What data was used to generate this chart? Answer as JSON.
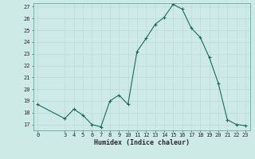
{
  "x": [
    0,
    3,
    4,
    5,
    6,
    7,
    8,
    9,
    10,
    11,
    12,
    13,
    14,
    15,
    16,
    17,
    18,
    19,
    20,
    21,
    22,
    23
  ],
  "y": [
    18.7,
    17.5,
    18.3,
    17.8,
    17.0,
    16.8,
    19.0,
    19.5,
    18.7,
    23.2,
    24.3,
    25.5,
    26.1,
    27.2,
    26.8,
    25.2,
    24.4,
    22.7,
    20.5,
    17.4,
    17.0,
    16.9
  ],
  "line_color": "#1a6b5e",
  "marker": "+",
  "marker_size": 3,
  "marker_lw": 0.8,
  "line_width": 0.8,
  "bg_color": "#ceeae7",
  "grid_color": "#b8d8d5",
  "xlabel": "Humidex (Indice chaleur)",
  "ylim_min": 16.5,
  "ylim_max": 27.3,
  "xlim_min": -0.5,
  "xlim_max": 23.5,
  "yticks": [
    17,
    18,
    19,
    20,
    21,
    22,
    23,
    24,
    25,
    26,
    27
  ],
  "xticks": [
    0,
    3,
    4,
    5,
    6,
    7,
    8,
    9,
    10,
    11,
    12,
    13,
    14,
    15,
    16,
    17,
    18,
    19,
    20,
    21,
    22,
    23
  ],
  "tick_fontsize": 5.0,
  "xlabel_fontsize": 6.0,
  "tick_color": "#2a2a2a",
  "spine_color": "#5a9a90"
}
